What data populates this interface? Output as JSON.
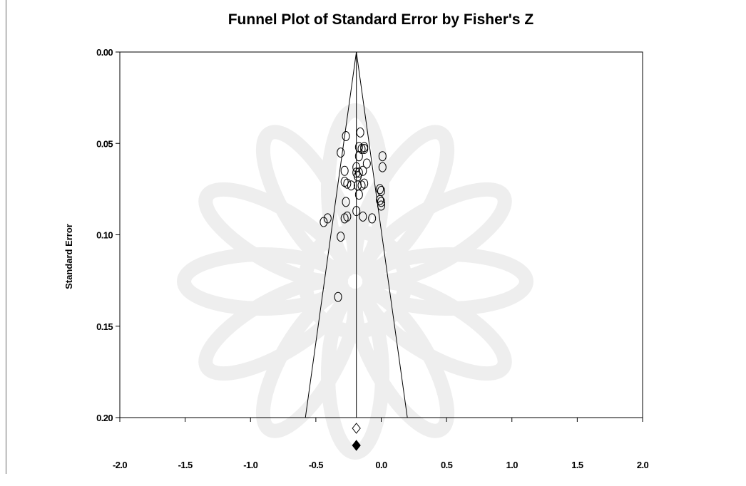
{
  "chart_data": {
    "type": "scatter",
    "title": "Funnel Plot of Standard Error by Fisher's Z",
    "xlabel": "",
    "ylabel": "Standard Error",
    "xlim": [
      -2.0,
      2.0
    ],
    "ylim": [
      0.0,
      0.2
    ],
    "y_inverted": true,
    "x_ticks": [
      "-2.0",
      "-1.5",
      "-1.0",
      "-0.5",
      "0.0",
      "0.5",
      "1.0",
      "1.5",
      "2.0"
    ],
    "y_ticks": [
      "0.00",
      "0.05",
      "0.10",
      "0.15",
      "0.20"
    ],
    "grid": false,
    "legend": "none",
    "combined_effect": -0.19,
    "funnel": {
      "apex": [
        -0.19,
        0.0
      ],
      "left_base": [
        -0.58,
        0.2
      ],
      "right_base": [
        0.2,
        0.2
      ]
    },
    "studies": [
      {
        "x": -0.16,
        "y": 0.044
      },
      {
        "x": -0.27,
        "y": 0.046
      },
      {
        "x": -0.17,
        "y": 0.052
      },
      {
        "x": -0.15,
        "y": 0.053
      },
      {
        "x": -0.13,
        "y": 0.052
      },
      {
        "x": -0.13,
        "y": 0.053
      },
      {
        "x": -0.31,
        "y": 0.055
      },
      {
        "x": -0.17,
        "y": 0.057
      },
      {
        "x": 0.01,
        "y": 0.057
      },
      {
        "x": -0.11,
        "y": 0.061
      },
      {
        "x": -0.19,
        "y": 0.063
      },
      {
        "x": 0.01,
        "y": 0.063
      },
      {
        "x": -0.28,
        "y": 0.065
      },
      {
        "x": -0.14,
        "y": 0.065
      },
      {
        "x": -0.19,
        "y": 0.066
      },
      {
        "x": -0.17,
        "y": 0.066
      },
      {
        "x": -0.18,
        "y": 0.068
      },
      {
        "x": -0.28,
        "y": 0.071
      },
      {
        "x": -0.26,
        "y": 0.072
      },
      {
        "x": -0.23,
        "y": 0.073
      },
      {
        "x": -0.18,
        "y": 0.073
      },
      {
        "x": -0.15,
        "y": 0.073
      },
      {
        "x": -0.13,
        "y": 0.072
      },
      {
        "x": -0.01,
        "y": 0.075
      },
      {
        "x": 0.0,
        "y": 0.076
      },
      {
        "x": -0.17,
        "y": 0.078
      },
      {
        "x": -0.27,
        "y": 0.082
      },
      {
        "x": -0.01,
        "y": 0.081
      },
      {
        "x": 0.0,
        "y": 0.082
      },
      {
        "x": 0.0,
        "y": 0.084
      },
      {
        "x": -0.19,
        "y": 0.087
      },
      {
        "x": -0.28,
        "y": 0.091
      },
      {
        "x": -0.26,
        "y": 0.09
      },
      {
        "x": -0.41,
        "y": 0.091
      },
      {
        "x": -0.44,
        "y": 0.093
      },
      {
        "x": -0.14,
        "y": 0.09
      },
      {
        "x": -0.07,
        "y": 0.091
      },
      {
        "x": -0.31,
        "y": 0.101
      },
      {
        "x": -0.33,
        "y": 0.134
      }
    ],
    "diamond_open": {
      "x": -0.19
    },
    "diamond_filled": {
      "x": -0.19
    }
  }
}
